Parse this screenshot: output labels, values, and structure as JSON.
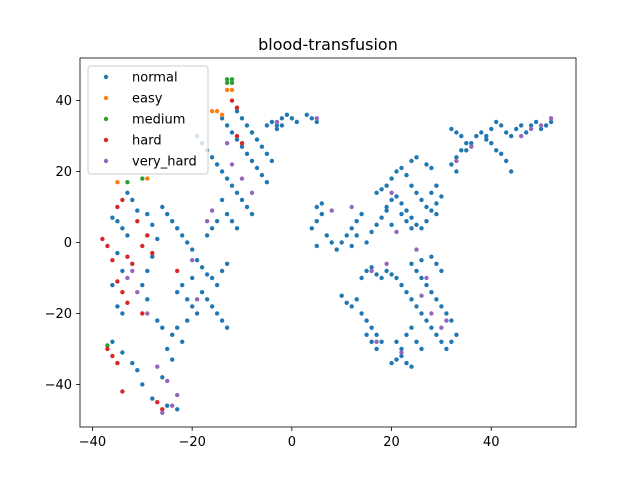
{
  "chart_data": {
    "type": "scatter",
    "title": "blood-transfusion",
    "xlabel": "",
    "ylabel": "",
    "xlim": [
      -42.5,
      57
    ],
    "ylim": [
      -52,
      52
    ],
    "x_ticks": [
      -40,
      -20,
      0,
      20,
      40
    ],
    "y_ticks": [
      -40,
      -20,
      0,
      20,
      40
    ],
    "x_tick_labels": [
      "−40",
      "−20",
      "0",
      "20",
      "40"
    ],
    "y_tick_labels": [
      "−40",
      "−20",
      "0",
      "20",
      "40"
    ],
    "grid": false,
    "legend_position": "upper-left",
    "series": [
      {
        "name": "normal",
        "color": "#1f77b4",
        "points": [
          [
            -36,
            7
          ],
          [
            -35,
            6
          ],
          [
            -34,
            4
          ],
          [
            -33,
            2
          ],
          [
            -35,
            -3
          ],
          [
            -34,
            -8
          ],
          [
            -36,
            -12
          ],
          [
            -35,
            -18
          ],
          [
            -34,
            -20
          ],
          [
            -36,
            -28
          ],
          [
            -34,
            -31
          ],
          [
            -32,
            -34
          ],
          [
            -31,
            -36
          ],
          [
            -30,
            -40
          ],
          [
            -33,
            14
          ],
          [
            -32,
            12
          ],
          [
            -31,
            9
          ],
          [
            -29,
            8
          ],
          [
            -28,
            5
          ],
          [
            -27,
            1
          ],
          [
            -28,
            -4
          ],
          [
            -29,
            -8
          ],
          [
            -30,
            -12
          ],
          [
            -29,
            -16
          ],
          [
            -27,
            -22
          ],
          [
            -26,
            -24
          ],
          [
            -25,
            -30
          ],
          [
            -24,
            -33
          ],
          [
            -26,
            -38
          ],
          [
            -28,
            -44
          ],
          [
            -25,
            -46
          ],
          [
            -23,
            -47
          ],
          [
            -26,
            10
          ],
          [
            -25,
            8
          ],
          [
            -24,
            6
          ],
          [
            -23,
            4
          ],
          [
            -22,
            2
          ],
          [
            -21,
            0
          ],
          [
            -20,
            -2
          ],
          [
            -19,
            -5
          ],
          [
            -18,
            -7
          ],
          [
            -17,
            -9
          ],
          [
            -20,
            -10
          ],
          [
            -22,
            -12
          ],
          [
            -23,
            -14
          ],
          [
            -21,
            -16
          ],
          [
            -20,
            -18
          ],
          [
            -19,
            -20
          ],
          [
            -21,
            -22
          ],
          [
            -23,
            -24
          ],
          [
            -24,
            -26
          ],
          [
            -22,
            -28
          ],
          [
            -18,
            -14
          ],
          [
            -17,
            -16
          ],
          [
            -16,
            -18
          ],
          [
            -15,
            -20
          ],
          [
            -14,
            -22
          ],
          [
            -13,
            -24
          ],
          [
            -15,
            -12
          ],
          [
            -16,
            -10
          ],
          [
            -14,
            -8
          ],
          [
            -13,
            -6
          ],
          [
            -19,
            30
          ],
          [
            -18,
            28
          ],
          [
            -17,
            26
          ],
          [
            -16,
            24
          ],
          [
            -15,
            22
          ],
          [
            -14,
            20
          ],
          [
            -13,
            18
          ],
          [
            -12,
            16
          ],
          [
            -11,
            14
          ],
          [
            -10,
            12
          ],
          [
            -9,
            10
          ],
          [
            -8,
            8
          ],
          [
            -14,
            12
          ],
          [
            -13,
            8
          ],
          [
            -12,
            6
          ],
          [
            -11,
            4
          ],
          [
            -15,
            6
          ],
          [
            -16,
            4
          ],
          [
            -17,
            2
          ],
          [
            -14,
            35
          ],
          [
            -13,
            33
          ],
          [
            -12,
            31
          ],
          [
            -11,
            29
          ],
          [
            -10,
            27
          ],
          [
            -9,
            25
          ],
          [
            -8,
            23
          ],
          [
            -7,
            21
          ],
          [
            -6,
            19
          ],
          [
            -5,
            17
          ],
          [
            -11,
            37
          ],
          [
            -10,
            35
          ],
          [
            -9,
            33
          ],
          [
            -8,
            31
          ],
          [
            -7,
            29
          ],
          [
            -6,
            27
          ],
          [
            -5,
            25
          ],
          [
            -4,
            23
          ],
          [
            -5,
            33
          ],
          [
            -4,
            34
          ],
          [
            -3,
            33
          ],
          [
            -2,
            35
          ],
          [
            -1,
            36
          ],
          [
            0,
            35
          ],
          [
            1,
            34
          ],
          [
            -3,
            32
          ],
          [
            -2,
            33
          ],
          [
            3,
            36
          ],
          [
            4,
            35
          ],
          [
            5,
            34
          ],
          [
            4,
            4
          ],
          [
            5,
            6
          ],
          [
            6,
            8
          ],
          [
            5,
            10
          ],
          [
            6,
            11
          ],
          [
            5,
            -1
          ],
          [
            7,
            2
          ],
          [
            8,
            0
          ],
          [
            9,
            -2
          ],
          [
            10,
            0
          ],
          [
            11,
            2
          ],
          [
            12,
            4
          ],
          [
            13,
            6
          ],
          [
            14,
            8
          ],
          [
            13,
            2
          ],
          [
            12,
            -1
          ],
          [
            15,
            0
          ],
          [
            16,
            3
          ],
          [
            17,
            5
          ],
          [
            18,
            7
          ],
          [
            19,
            9
          ],
          [
            17,
            14
          ],
          [
            18,
            15
          ],
          [
            19,
            16
          ],
          [
            20,
            18
          ],
          [
            21,
            20
          ],
          [
            22,
            21
          ],
          [
            23,
            19
          ],
          [
            24,
            16
          ],
          [
            25,
            14
          ],
          [
            26,
            12
          ],
          [
            27,
            10
          ],
          [
            28,
            9
          ],
          [
            29,
            8
          ],
          [
            27,
            6
          ],
          [
            26,
            4
          ],
          [
            25,
            5
          ],
          [
            24,
            7
          ],
          [
            23,
            9
          ],
          [
            22,
            11
          ],
          [
            21,
            13
          ],
          [
            20,
            12
          ],
          [
            19,
            10
          ],
          [
            22,
            8
          ],
          [
            23,
            6
          ],
          [
            24,
            4
          ],
          [
            20,
            5
          ],
          [
            28,
            14
          ],
          [
            29,
            16
          ],
          [
            30,
            13
          ],
          [
            29,
            11
          ],
          [
            27,
            22
          ],
          [
            28,
            21
          ],
          [
            25,
            24
          ],
          [
            24,
            23
          ],
          [
            10,
            -15
          ],
          [
            11,
            -17
          ],
          [
            12,
            -18
          ],
          [
            13,
            -16
          ],
          [
            14,
            -20
          ],
          [
            15,
            -22
          ],
          [
            16,
            -24
          ],
          [
            17,
            -26
          ],
          [
            18,
            -28
          ],
          [
            17,
            -30
          ],
          [
            16,
            -28
          ],
          [
            15,
            -26
          ],
          [
            14,
            -10
          ],
          [
            15,
            -8
          ],
          [
            16,
            -7
          ],
          [
            17,
            -9
          ],
          [
            18,
            -10
          ],
          [
            19,
            -8
          ],
          [
            20,
            -9
          ],
          [
            21,
            -10
          ],
          [
            22,
            -12
          ],
          [
            23,
            -14
          ],
          [
            24,
            -16
          ],
          [
            25,
            -18
          ],
          [
            26,
            -20
          ],
          [
            27,
            -22
          ],
          [
            28,
            -24
          ],
          [
            29,
            -26
          ],
          [
            30,
            -28
          ],
          [
            31,
            -30
          ],
          [
            32,
            -28
          ],
          [
            33,
            -26
          ],
          [
            32,
            -22
          ],
          [
            31,
            -20
          ],
          [
            30,
            -18
          ],
          [
            29,
            -16
          ],
          [
            28,
            -14
          ],
          [
            27,
            -12
          ],
          [
            26,
            -10
          ],
          [
            25,
            -8
          ],
          [
            24,
            -6
          ],
          [
            26,
            -5
          ],
          [
            28,
            -4
          ],
          [
            29,
            -6
          ],
          [
            30,
            -8
          ],
          [
            20,
            -34
          ],
          [
            21,
            -33
          ],
          [
            22,
            -32
          ],
          [
            23,
            -34
          ],
          [
            24,
            -35
          ],
          [
            22,
            -30
          ],
          [
            21,
            -28
          ],
          [
            23,
            -26
          ],
          [
            24,
            -24
          ],
          [
            25,
            -28
          ],
          [
            26,
            -30
          ],
          [
            32,
            32
          ],
          [
            33,
            31
          ],
          [
            34,
            30
          ],
          [
            35,
            28
          ],
          [
            34,
            26
          ],
          [
            33,
            24
          ],
          [
            32,
            22
          ],
          [
            33,
            20
          ],
          [
            35,
            26
          ],
          [
            36,
            28
          ],
          [
            37,
            30
          ],
          [
            38,
            31
          ],
          [
            39,
            30
          ],
          [
            40,
            32
          ],
          [
            41,
            34
          ],
          [
            42,
            33
          ],
          [
            43,
            31
          ],
          [
            44,
            30
          ],
          [
            45,
            32
          ],
          [
            46,
            33
          ],
          [
            47,
            31
          ],
          [
            48,
            33
          ],
          [
            49,
            34
          ],
          [
            50,
            32
          ],
          [
            51,
            33
          ],
          [
            52,
            34
          ],
          [
            41,
            26
          ],
          [
            42,
            25
          ],
          [
            43,
            23
          ],
          [
            44,
            20
          ],
          [
            40,
            28
          ],
          [
            39,
            29
          ]
        ]
      },
      {
        "name": "easy",
        "color": "#ff7f0e",
        "points": [
          [
            -16,
            37
          ],
          [
            -15,
            37
          ],
          [
            -14,
            36
          ],
          [
            -13,
            43
          ],
          [
            -12,
            43
          ],
          [
            -35,
            17
          ],
          [
            -29,
            18
          ]
        ]
      },
      {
        "name": "medium",
        "color": "#2ca02c",
        "points": [
          [
            -13,
            46
          ],
          [
            -12,
            46
          ],
          [
            -12,
            45
          ],
          [
            -13,
            45
          ],
          [
            -37,
            -29
          ],
          [
            -30,
            18
          ],
          [
            -33,
            17
          ]
        ]
      },
      {
        "name": "hard",
        "color": "#d62728",
        "points": [
          [
            -38,
            1
          ],
          [
            -37,
            -1
          ],
          [
            -36,
            -5
          ],
          [
            -35,
            -11
          ],
          [
            -34,
            -14
          ],
          [
            -33,
            -17
          ],
          [
            -37,
            -30
          ],
          [
            -36,
            -32
          ],
          [
            -35,
            -34
          ],
          [
            -34,
            -42
          ],
          [
            -31,
            6
          ],
          [
            -30,
            -1
          ],
          [
            -29,
            2
          ],
          [
            -28,
            -3
          ],
          [
            -33,
            -4
          ],
          [
            -32,
            -6
          ],
          [
            -30,
            -20
          ],
          [
            -26,
            -47
          ],
          [
            -27,
            -45
          ],
          [
            -12,
            40
          ],
          [
            -11,
            38
          ],
          [
            -11,
            30
          ],
          [
            -10,
            28
          ],
          [
            -35,
            10
          ],
          [
            -34,
            12
          ],
          [
            -23,
            -8
          ]
        ]
      },
      {
        "name": "very_hard",
        "color": "#9467bd",
        "points": [
          [
            -33,
            -10
          ],
          [
            -32,
            -8
          ],
          [
            -31,
            -14
          ],
          [
            -29,
            -20
          ],
          [
            -27,
            -35
          ],
          [
            -25,
            -39
          ],
          [
            -23,
            -43
          ],
          [
            -26,
            -48
          ],
          [
            -24,
            -46
          ],
          [
            -20,
            -5
          ],
          [
            -19,
            -16
          ],
          [
            -17,
            6
          ],
          [
            -16,
            9
          ],
          [
            -12,
            22
          ],
          [
            -13,
            28
          ],
          [
            -10,
            18
          ],
          [
            -8,
            14
          ],
          [
            -3,
            34
          ],
          [
            5,
            35
          ],
          [
            8,
            9
          ],
          [
            12,
            10
          ],
          [
            20,
            14
          ],
          [
            21,
            3
          ],
          [
            25,
            -2
          ],
          [
            27,
            -10
          ],
          [
            28,
            -20
          ],
          [
            30,
            -24
          ],
          [
            31,
            -22
          ],
          [
            26,
            -15
          ],
          [
            19,
            -6
          ],
          [
            16,
            -8
          ],
          [
            17,
            -28
          ],
          [
            22,
            -31
          ],
          [
            46,
            30
          ],
          [
            50,
            33
          ],
          [
            52,
            35
          ],
          [
            48,
            32
          ],
          [
            33,
            23
          ],
          [
            36,
            27
          ]
        ]
      }
    ]
  }
}
